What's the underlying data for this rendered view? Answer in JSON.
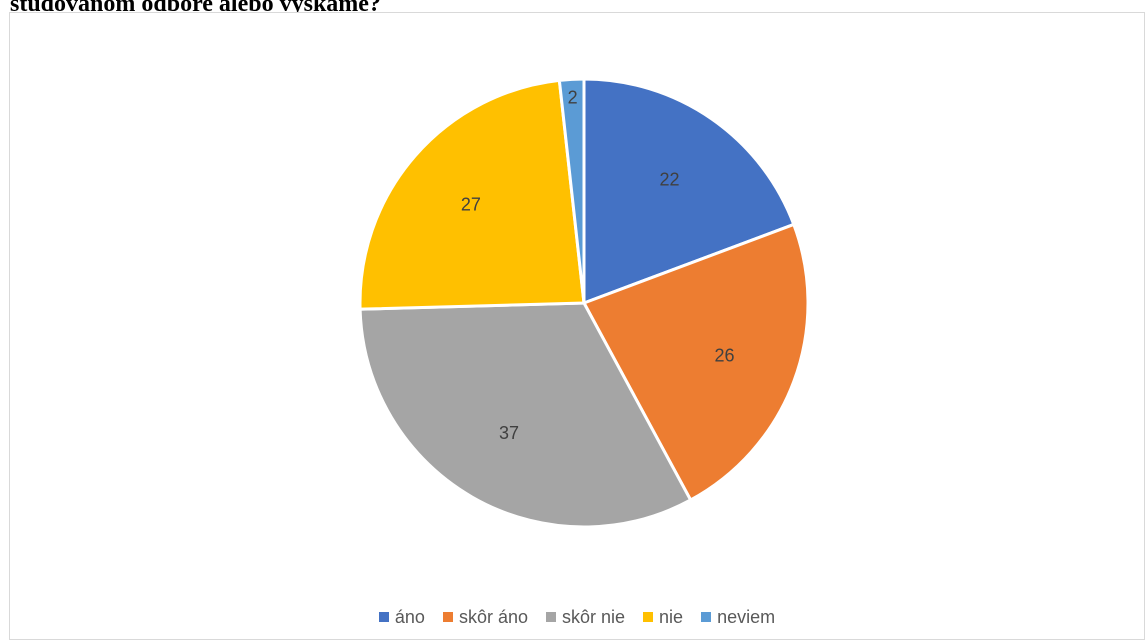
{
  "heading": "študovanom odbore alebo vyškame?",
  "chart_data": {
    "type": "pie",
    "title": "",
    "categories": [
      "áno",
      "skôr áno",
      "skôr nie",
      "nie",
      "neviem"
    ],
    "values": [
      22,
      26,
      37,
      27,
      2
    ],
    "colors": [
      "#4472C4",
      "#ED7D31",
      "#A5A5A5",
      "#FFC000",
      "#5B9BD5"
    ],
    "start_angle_deg": 0,
    "direction": "clockwise",
    "data_labels": true,
    "legend_position": "bottom"
  }
}
